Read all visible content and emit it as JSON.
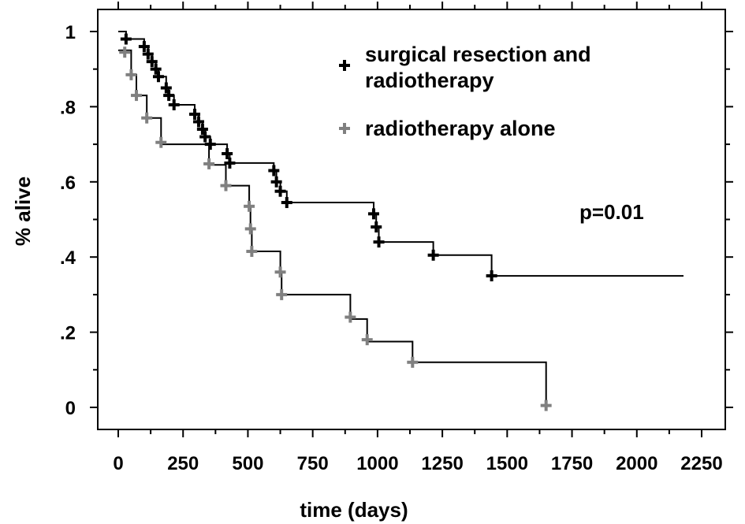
{
  "chart_data": {
    "type": "line",
    "xlabel": "time (days)",
    "ylabel": "% alive",
    "xlim": [
      0,
      2250
    ],
    "ylim": [
      0,
      1
    ],
    "x_ticks": [
      "0",
      "250",
      "500",
      "750",
      "1000",
      "1250",
      "1500",
      "1750",
      "2000",
      "2250"
    ],
    "y_ticks": [
      "0",
      ".2",
      ".4",
      ".6",
      ".8",
      "1"
    ],
    "grid": false,
    "legend_position": "top-right",
    "annotation": "p=0.01",
    "series": [
      {
        "name": "surgical resection and radiotherapy",
        "color": "#000000",
        "step": [
          [
            0,
            1.0
          ],
          [
            30,
            1.0
          ],
          [
            30,
            0.98
          ],
          [
            100,
            0.98
          ],
          [
            100,
            0.96
          ],
          [
            115,
            0.96
          ],
          [
            115,
            0.94
          ],
          [
            130,
            0.94
          ],
          [
            130,
            0.92
          ],
          [
            145,
            0.92
          ],
          [
            145,
            0.9
          ],
          [
            155,
            0.9
          ],
          [
            155,
            0.88
          ],
          [
            185,
            0.88
          ],
          [
            185,
            0.85
          ],
          [
            195,
            0.85
          ],
          [
            195,
            0.83
          ],
          [
            215,
            0.83
          ],
          [
            215,
            0.805
          ],
          [
            295,
            0.805
          ],
          [
            295,
            0.78
          ],
          [
            310,
            0.78
          ],
          [
            310,
            0.76
          ],
          [
            325,
            0.76
          ],
          [
            325,
            0.74
          ],
          [
            335,
            0.74
          ],
          [
            335,
            0.72
          ],
          [
            355,
            0.72
          ],
          [
            355,
            0.7
          ],
          [
            420,
            0.7
          ],
          [
            420,
            0.675
          ],
          [
            430,
            0.675
          ],
          [
            430,
            0.65
          ],
          [
            600,
            0.65
          ],
          [
            600,
            0.63
          ],
          [
            610,
            0.63
          ],
          [
            610,
            0.6
          ],
          [
            625,
            0.6
          ],
          [
            625,
            0.575
          ],
          [
            650,
            0.575
          ],
          [
            650,
            0.545
          ],
          [
            985,
            0.545
          ],
          [
            985,
            0.515
          ],
          [
            995,
            0.515
          ],
          [
            995,
            0.48
          ],
          [
            1005,
            0.48
          ],
          [
            1005,
            0.44
          ],
          [
            1215,
            0.44
          ],
          [
            1215,
            0.405
          ],
          [
            1440,
            0.405
          ],
          [
            1440,
            0.35
          ],
          [
            2180,
            0.35
          ]
        ],
        "censored": [
          [
            30,
            0.98
          ],
          [
            100,
            0.96
          ],
          [
            115,
            0.94
          ],
          [
            130,
            0.92
          ],
          [
            145,
            0.9
          ],
          [
            155,
            0.88
          ],
          [
            185,
            0.85
          ],
          [
            195,
            0.83
          ],
          [
            215,
            0.805
          ],
          [
            295,
            0.78
          ],
          [
            310,
            0.76
          ],
          [
            325,
            0.74
          ],
          [
            335,
            0.72
          ],
          [
            355,
            0.7
          ],
          [
            420,
            0.675
          ],
          [
            430,
            0.65
          ],
          [
            600,
            0.63
          ],
          [
            610,
            0.6
          ],
          [
            625,
            0.575
          ],
          [
            650,
            0.545
          ],
          [
            985,
            0.515
          ],
          [
            995,
            0.48
          ],
          [
            1005,
            0.44
          ],
          [
            1215,
            0.405
          ],
          [
            1440,
            0.35
          ]
        ]
      },
      {
        "name": "radiotherapy alone",
        "color": "#808080",
        "step": [
          [
            0,
            0.95
          ],
          [
            50,
            0.95
          ],
          [
            50,
            0.885
          ],
          [
            70,
            0.885
          ],
          [
            70,
            0.83
          ],
          [
            110,
            0.83
          ],
          [
            110,
            0.77
          ],
          [
            165,
            0.77
          ],
          [
            165,
            0.7
          ],
          [
            350,
            0.7
          ],
          [
            350,
            0.645
          ],
          [
            415,
            0.645
          ],
          [
            415,
            0.59
          ],
          [
            505,
            0.59
          ],
          [
            505,
            0.535
          ],
          [
            510,
            0.535
          ],
          [
            510,
            0.475
          ],
          [
            515,
            0.475
          ],
          [
            515,
            0.415
          ],
          [
            625,
            0.415
          ],
          [
            625,
            0.36
          ],
          [
            630,
            0.36
          ],
          [
            630,
            0.3
          ],
          [
            895,
            0.3
          ],
          [
            895,
            0.235
          ],
          [
            960,
            0.235
          ],
          [
            960,
            0.175
          ],
          [
            1135,
            0.175
          ],
          [
            1135,
            0.12
          ],
          [
            1650,
            0.12
          ],
          [
            1650,
            0.0
          ]
        ],
        "censored": [
          [
            25,
            0.945
          ],
          [
            50,
            0.885
          ],
          [
            70,
            0.83
          ],
          [
            110,
            0.77
          ],
          [
            165,
            0.705
          ],
          [
            350,
            0.648
          ],
          [
            415,
            0.59
          ],
          [
            505,
            0.535
          ],
          [
            510,
            0.475
          ],
          [
            515,
            0.415
          ],
          [
            625,
            0.36
          ],
          [
            630,
            0.3
          ],
          [
            895,
            0.24
          ],
          [
            960,
            0.18
          ],
          [
            1135,
            0.12
          ],
          [
            1650,
            0.005
          ]
        ]
      }
    ]
  }
}
